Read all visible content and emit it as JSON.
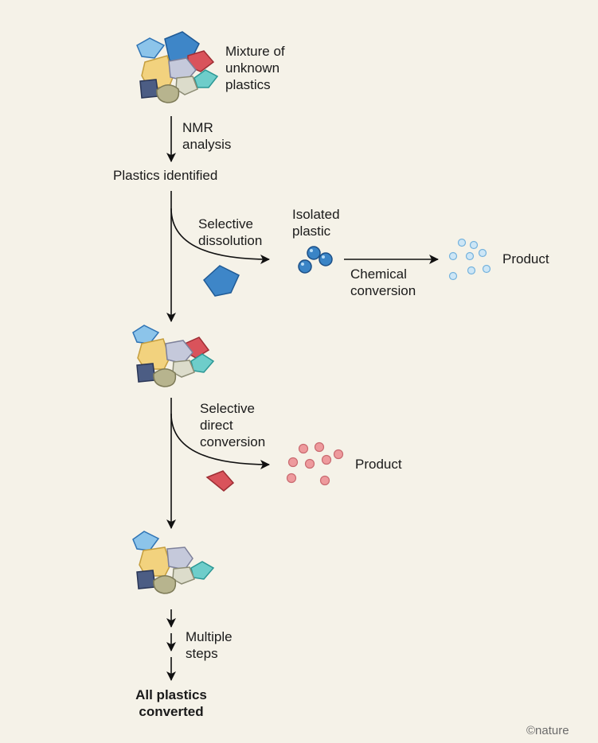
{
  "labels": {
    "mixture": [
      "Mixture of",
      "unknown",
      "plastics"
    ],
    "nmr": [
      "NMR",
      "analysis"
    ],
    "identified": "Plastics identified",
    "selective_dissolution": [
      "Selective",
      "dissolution"
    ],
    "isolated": [
      "Isolated",
      "plastic"
    ],
    "chemical_conversion": [
      "Chemical",
      "conversion"
    ],
    "product_1": "Product",
    "selective_direct": [
      "Selective",
      "direct",
      "conversion"
    ],
    "product_2": "Product",
    "multiple_steps": [
      "Multiple",
      "steps"
    ],
    "all_converted": [
      "All plastics",
      "converted"
    ]
  },
  "credit": "©nature",
  "colors": {
    "background": "#f5f2e8",
    "blue_plastic": "#3e86c8",
    "light_blue_plastic": "#8cc4ea",
    "red_plastic": "#d9535b",
    "yellow_plastic": "#f2d27e",
    "lavender_plastic": "#c5c9db",
    "teal_plastic": "#6ecdca",
    "navy_plastic": "#4c5d84",
    "olive_plastic": "#b7b48e",
    "beige_plastic": "#dcdccb",
    "isolated_bead": "#3a84c6",
    "product_blue": "#cde6f6",
    "product_pink": "#ee9a9d",
    "arrow": "#111111"
  }
}
